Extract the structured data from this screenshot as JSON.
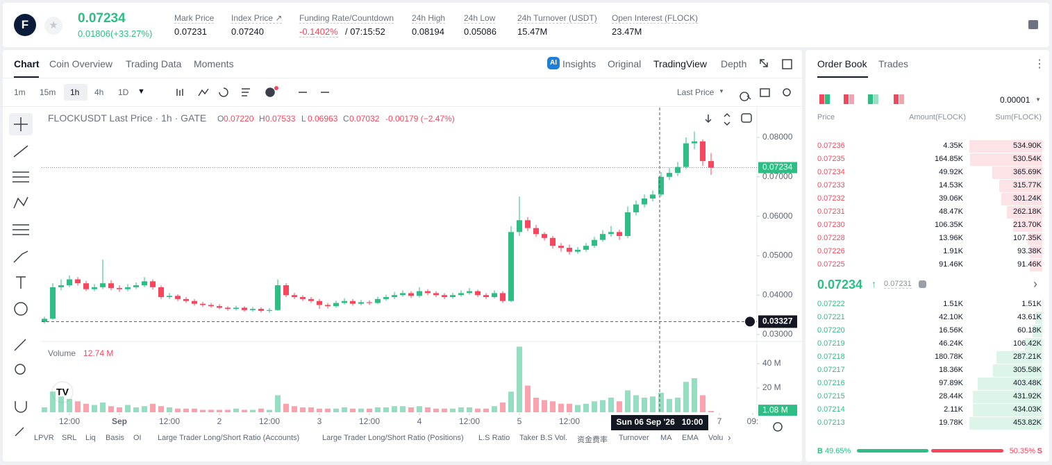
{
  "header": {
    "logo": "F",
    "last_price": "0.07234",
    "change": "0.01806(+33.27%)",
    "stats": [
      {
        "label": "Mark Price",
        "value": "0.07231"
      },
      {
        "label": "Index Price ↗",
        "value": "0.07240"
      },
      {
        "label": "Funding Rate/Countdown",
        "value": "-0.1402%",
        "extra": "/ 07:15:52"
      },
      {
        "label": "24h High",
        "value": "0.08194"
      },
      {
        "label": "24h Low",
        "value": "0.05086"
      },
      {
        "label": "24h Turnover (USDT)",
        "value": "15.47M"
      },
      {
        "label": "Open Interest (FLOCK)",
        "value": "23.47M"
      }
    ]
  },
  "chart_tabs": [
    "Chart",
    "Coin Overview",
    "Trading Data",
    "Moments"
  ],
  "view_tabs": [
    "Insights",
    "Original",
    "TradingView",
    "Depth"
  ],
  "intervals": [
    "1m",
    "15m",
    "1h",
    "4h",
    "1D"
  ],
  "price_source": "Last Price",
  "legend": {
    "symbol": "FLOCKUSDT Last Price · 1h · GATE",
    "ohlc": [
      {
        "key": "O",
        "value": "0.07220"
      },
      {
        "key": "H",
        "value": "0.07533"
      },
      {
        "key": "L",
        "value": "0.06963"
      },
      {
        "key": "C",
        "value": "0.07032"
      }
    ],
    "change": "-0.00179 (−2.47%)"
  },
  "volume_title": "Volume",
  "volume_value": "12.74 M",
  "crosshair_time": "Sun 06 Sep '26   10:00",
  "indicators": [
    "LPVR",
    "SRL",
    "Liq",
    "Basis",
    "OI",
    "Large Trader Long/Short Ratio (Accounts)",
    "Large Trader Long/Short Ratio (Positions)",
    "L.S Ratio",
    "Taker B.S Vol.",
    "资金费率",
    "Turnover",
    "MA",
    "EMA",
    "Volu"
  ],
  "chart_data": {
    "type": "candlestick",
    "up_color": "#2ebd85",
    "down_color": "#f6465d",
    "open": [
      0.0332,
      0.034,
      0.042,
      0.0425,
      0.044,
      0.043,
      0.0415,
      0.042,
      0.043,
      0.0418,
      0.0415,
      0.042,
      0.0425,
      0.0435,
      0.042,
      0.0395,
      0.0398,
      0.039,
      0.0385,
      0.0378,
      0.0375,
      0.0372,
      0.0368,
      0.0365,
      0.0368,
      0.0362,
      0.0365,
      0.036,
      0.0362,
      0.0425,
      0.04,
      0.0395,
      0.039,
      0.0385,
      0.0375,
      0.0372,
      0.038,
      0.0385,
      0.0378,
      0.0382,
      0.038,
      0.039,
      0.0395,
      0.04,
      0.0405,
      0.0398,
      0.041,
      0.0405,
      0.04,
      0.0395,
      0.04,
      0.0405,
      0.041,
      0.04,
      0.0395,
      0.0405,
      0.0385,
      0.056,
      0.059,
      0.057,
      0.0555,
      0.0545,
      0.0525,
      0.052,
      0.051,
      0.0515,
      0.0525,
      0.054,
      0.0555,
      0.056,
      0.055,
      0.061,
      0.063,
      0.0645,
      0.0655,
      0.07,
      0.071,
      0.0725,
      0.0785,
      0.079,
      0.074
    ],
    "high": [
      0.0345,
      0.043,
      0.044,
      0.045,
      0.0446,
      0.0436,
      0.0428,
      0.049,
      0.0438,
      0.0425,
      0.0428,
      0.0432,
      0.0446,
      0.044,
      0.0424,
      0.0405,
      0.0402,
      0.0395,
      0.039,
      0.0383,
      0.038,
      0.0377,
      0.0372,
      0.0373,
      0.0372,
      0.037,
      0.0369,
      0.0367,
      0.044,
      0.043,
      0.0406,
      0.04,
      0.0395,
      0.039,
      0.038,
      0.0386,
      0.0392,
      0.039,
      0.0388,
      0.0387,
      0.0396,
      0.0401,
      0.0408,
      0.0412,
      0.041,
      0.042,
      0.0415,
      0.041,
      0.0405,
      0.0406,
      0.0412,
      0.0418,
      0.0414,
      0.0405,
      0.0412,
      0.041,
      0.0575,
      0.065,
      0.0598,
      0.0578,
      0.056,
      0.055,
      0.0532,
      0.0528,
      0.0522,
      0.0532,
      0.0548,
      0.0565,
      0.0575,
      0.0566,
      0.0625,
      0.064,
      0.0655,
      0.0665,
      0.0712,
      0.0722,
      0.0738,
      0.08,
      0.0815,
      0.0795,
      0.076
    ],
    "low": [
      0.0328,
      0.0338,
      0.0412,
      0.042,
      0.0424,
      0.041,
      0.041,
      0.0415,
      0.0412,
      0.0408,
      0.041,
      0.0415,
      0.042,
      0.0414,
      0.039,
      0.039,
      0.0385,
      0.038,
      0.0373,
      0.037,
      0.0368,
      0.0364,
      0.036,
      0.0361,
      0.0358,
      0.0358,
      0.0356,
      0.0355,
      0.036,
      0.0395,
      0.039,
      0.0385,
      0.038,
      0.0365,
      0.0366,
      0.0368,
      0.0376,
      0.0373,
      0.0374,
      0.0375,
      0.0377,
      0.0386,
      0.039,
      0.0396,
      0.0393,
      0.0394,
      0.04,
      0.0395,
      0.039,
      0.0391,
      0.0396,
      0.0401,
      0.0395,
      0.039,
      0.0391,
      0.038,
      0.0382,
      0.055,
      0.0562,
      0.0548,
      0.0538,
      0.0518,
      0.051,
      0.0503,
      0.0505,
      0.051,
      0.052,
      0.0535,
      0.0548,
      0.054,
      0.0545,
      0.0602,
      0.0622,
      0.0638,
      0.065,
      0.0692,
      0.0702,
      0.072,
      0.077,
      0.0728,
      0.0705
    ],
    "close": [
      0.034,
      0.042,
      0.0425,
      0.044,
      0.043,
      0.0415,
      0.042,
      0.043,
      0.0418,
      0.0415,
      0.042,
      0.0425,
      0.0435,
      0.042,
      0.0395,
      0.0398,
      0.039,
      0.0385,
      0.0378,
      0.0375,
      0.0372,
      0.0368,
      0.0365,
      0.0368,
      0.0362,
      0.0365,
      0.036,
      0.0362,
      0.0425,
      0.04,
      0.0395,
      0.039,
      0.0385,
      0.0375,
      0.0372,
      0.038,
      0.0385,
      0.0378,
      0.0382,
      0.038,
      0.039,
      0.0395,
      0.04,
      0.0405,
      0.0398,
      0.041,
      0.0405,
      0.04,
      0.0395,
      0.04,
      0.0405,
      0.041,
      0.04,
      0.0395,
      0.0405,
      0.0385,
      0.056,
      0.059,
      0.057,
      0.0555,
      0.0545,
      0.0525,
      0.052,
      0.051,
      0.0515,
      0.0525,
      0.054,
      0.0555,
      0.056,
      0.055,
      0.061,
      0.063,
      0.0645,
      0.0655,
      0.07,
      0.071,
      0.0725,
      0.0785,
      0.079,
      0.074,
      0.0723
    ],
    "ylim": [
      0.02859,
      0.08757
    ],
    "yticks": [
      {
        "value": 0.03,
        "label": "0.03000"
      },
      {
        "value": 0.04,
        "label": "0.04000"
      },
      {
        "value": 0.05,
        "label": "0.05000"
      },
      {
        "value": 0.06,
        "label": "0.06000"
      },
      {
        "value": 0.07,
        "label": "0.07000"
      },
      {
        "value": 0.08,
        "label": "0.08000"
      }
    ],
    "xticks": [
      {
        "value": 3,
        "label": "12:00"
      },
      {
        "value": 9,
        "label": "Sep"
      },
      {
        "value": 15,
        "label": "12:00"
      },
      {
        "value": 21,
        "label": "2"
      },
      {
        "value": 27,
        "label": "12:00"
      },
      {
        "value": 33,
        "label": "3"
      },
      {
        "value": 39,
        "label": "12:00"
      },
      {
        "value": 45,
        "label": "4"
      },
      {
        "value": 51,
        "label": "12:00"
      },
      {
        "value": 57,
        "label": "5"
      },
      {
        "value": 63,
        "label": "12:00"
      },
      {
        "value": 81,
        "label": "7"
      },
      {
        "value": 85,
        "label": "09:"
      }
    ],
    "last_price": 0.07234,
    "crosshair_price": 0.03327,
    "volume": {
      "values": [
        4,
        17,
        13,
        11,
        9,
        7,
        6,
        8,
        5,
        4,
        6,
        4,
        5,
        7,
        5,
        4,
        3,
        3,
        3,
        2,
        2,
        2,
        2,
        3,
        2,
        2,
        3,
        2,
        14,
        7,
        5,
        4,
        4,
        3,
        3,
        3,
        4,
        3,
        3,
        3,
        4,
        4,
        5,
        5,
        4,
        5,
        4,
        3,
        3,
        3,
        4,
        4,
        3,
        3,
        5,
        8,
        17,
        54,
        22,
        12,
        10,
        9,
        7,
        7,
        6,
        7,
        9,
        10,
        12,
        9,
        18,
        14,
        12,
        13,
        16,
        11,
        12,
        25,
        28,
        14,
        1.08
      ],
      "ylim": [
        0,
        55.4
      ],
      "yticks": [
        {
          "value": 20,
          "label": "20 M"
        },
        {
          "value": 40,
          "label": "40 M"
        }
      ],
      "last_label": "1.08 M"
    }
  },
  "order_book": {
    "tabs": [
      "Order Book",
      "Trades"
    ],
    "precision": "0.00001",
    "columns": [
      "Price",
      "Amount(FLOCK)",
      "Sum(FLOCK)"
    ],
    "asks": [
      {
        "price": "0.07236",
        "amount": "4.35K",
        "sum": {
          "value": 534.9,
          "label": "534.90K"
        }
      },
      {
        "price": "0.07235",
        "amount": "164.85K",
        "sum": {
          "value": 530.54,
          "label": "530.54K"
        }
      },
      {
        "price": "0.07234",
        "amount": "49.92K",
        "sum": {
          "value": 365.69,
          "label": "365.69K"
        }
      },
      {
        "price": "0.07233",
        "amount": "14.53K",
        "sum": {
          "value": 315.77,
          "label": "315.77K"
        }
      },
      {
        "price": "0.07232",
        "amount": "39.06K",
        "sum": {
          "value": 301.24,
          "label": "301.24K"
        }
      },
      {
        "price": "0.07231",
        "amount": "48.47K",
        "sum": {
          "value": 262.18,
          "label": "262.18K"
        }
      },
      {
        "price": "0.07230",
        "amount": "106.35K",
        "sum": {
          "value": 213.7,
          "label": "213.70K"
        }
      },
      {
        "price": "0.07228",
        "amount": "13.96K",
        "sum": {
          "value": 107.35,
          "label": "107.35K"
        }
      },
      {
        "price": "0.07226",
        "amount": "1.91K",
        "sum": {
          "value": 93.38,
          "label": "93.38K"
        }
      },
      {
        "price": "0.07225",
        "amount": "91.46K",
        "sum": {
          "value": 91.46,
          "label": "91.46K"
        }
      }
    ],
    "mid_price": "0.07234",
    "mark_price": "0.07231",
    "bids": [
      {
        "price": "0.07222",
        "amount": "1.51K",
        "sum": {
          "value": 1.51,
          "label": "1.51K"
        }
      },
      {
        "price": "0.07221",
        "amount": "42.10K",
        "sum": {
          "value": 43.61,
          "label": "43.61K"
        }
      },
      {
        "price": "0.07220",
        "amount": "16.56K",
        "sum": {
          "value": 60.18,
          "label": "60.18K"
        }
      },
      {
        "price": "0.07219",
        "amount": "46.24K",
        "sum": {
          "value": 106.42,
          "label": "106.42K"
        }
      },
      {
        "price": "0.07218",
        "amount": "180.78K",
        "sum": {
          "value": 287.21,
          "label": "287.21K"
        }
      },
      {
        "price": "0.07217",
        "amount": "18.36K",
        "sum": {
          "value": 305.58,
          "label": "305.58K"
        }
      },
      {
        "price": "0.07216",
        "amount": "97.89K",
        "sum": {
          "value": 403.48,
          "label": "403.48K"
        }
      },
      {
        "price": "0.07215",
        "amount": "28.44K",
        "sum": {
          "value": 431.92,
          "label": "431.92K"
        }
      },
      {
        "price": "0.07214",
        "amount": "2.11K",
        "sum": {
          "value": 434.03,
          "label": "434.03K"
        }
      },
      {
        "price": "0.07213",
        "amount": "19.78K",
        "sum": {
          "value": 453.82,
          "label": "453.82K"
        }
      }
    ],
    "buy_key": "B",
    "buy": {
      "value": 49.65,
      "label": "49.65%"
    },
    "sell_key": "S",
    "sell": {
      "value": 50.35,
      "label": "50.35%"
    }
  }
}
